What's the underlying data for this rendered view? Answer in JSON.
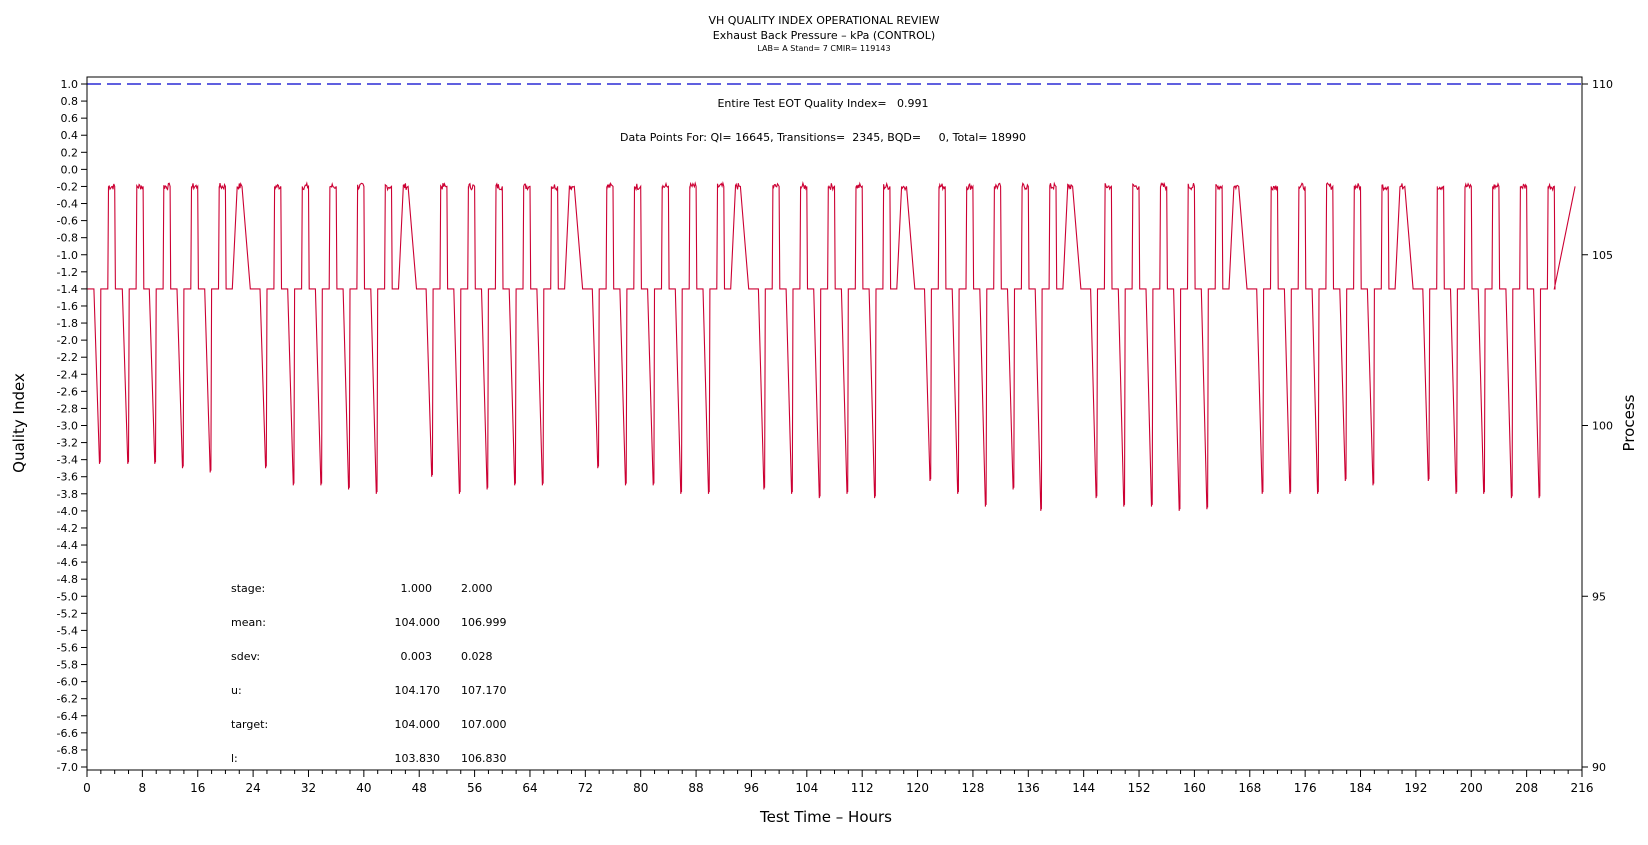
{
  "chart_data": {
    "type": "line",
    "title": "VH QUALITY INDEX OPERATIONAL REVIEW",
    "subtitle": "Exhaust Back Pressure – kPa (CONTROL)",
    "info_line": "LAB= A Stand= 7 CMIR= 119143",
    "xlabel": "Test Time – Hours",
    "ylabel_left": "Quality Index",
    "ylabel_right": "Process",
    "xlim": [
      0,
      216
    ],
    "xticks": [
      "0",
      "8",
      "16",
      "24",
      "32",
      "40",
      "48",
      "56",
      "64",
      "72",
      "80",
      "88",
      "96",
      "104",
      "112",
      "120",
      "128",
      "136",
      "144",
      "152",
      "160",
      "168",
      "176",
      "184",
      "192",
      "200",
      "208",
      "216"
    ],
    "ylim_left": [
      -7.0,
      1.0
    ],
    "yticks_left": [
      "1.0",
      "0.8",
      "0.6",
      "0.4",
      "0.2",
      "0.0",
      "-0.2",
      "-0.4",
      "-0.6",
      "-0.8",
      "-1.0",
      "-1.2",
      "-1.4",
      "-1.6",
      "-1.8",
      "-2.0",
      "-2.2",
      "-2.4",
      "-2.6",
      "-2.8",
      "-3.0",
      "-3.2",
      "-3.4",
      "-3.6",
      "-3.8",
      "-4.0",
      "-4.2",
      "-4.4",
      "-4.6",
      "-4.8",
      "-5.0",
      "-5.2",
      "-5.4",
      "-5.6",
      "-5.8",
      "-6.0",
      "-6.2",
      "-6.4",
      "-6.6",
      "-6.8",
      "-7.0"
    ],
    "ylim_right": [
      90,
      110
    ],
    "yticks_right": [
      "110",
      "105",
      "100",
      "95",
      "90"
    ],
    "grid": false,
    "annotations": {
      "quality_index_text": "Entire Test EOT Quality Index=   0.991",
      "data_points_text": "Data Points For: QI= 16645, Transitions=  2345, BQD=     0, Total= 18990"
    },
    "stats_table": {
      "rows": [
        {
          "label": "stage:",
          "v1": "1.000",
          "v2": "2.000"
        },
        {
          "label": "mean:",
          "v1": "104.000",
          "v2": "106.999"
        },
        {
          "label": "sdev:",
          "v1": "0.003",
          "v2": "0.028"
        },
        {
          "label": "u:",
          "v1": "104.170",
          "v2": "107.170"
        },
        {
          "label": "target:",
          "v1": "104.000",
          "v2": "107.000"
        },
        {
          "label": "l:",
          "v1": "103.830",
          "v2": "106.830"
        }
      ]
    },
    "series": [
      {
        "color": "#0000cc",
        "dashed": true,
        "axis": "left",
        "x": [
          0,
          216
        ],
        "y": [
          1.0,
          1.0
        ]
      },
      {
        "color": "#cc0033",
        "axis": "left",
        "baseline": -1.4,
        "peak": -0.2,
        "cycles": [
          {
            "start": 1.0,
            "min": -3.45
          },
          {
            "start": 5.1,
            "min": -3.45
          },
          {
            "start": 9.0,
            "min": -3.45
          },
          {
            "start": 13.0,
            "min": -3.5
          },
          {
            "start": 17.0,
            "min": -3.55
          },
          {
            "start": 21.0,
            "min": -1.4
          },
          {
            "start": 25.0,
            "min": -3.5
          },
          {
            "start": 29.0,
            "min": -3.7
          },
          {
            "start": 33.0,
            "min": -3.7
          },
          {
            "start": 37.0,
            "min": -3.75
          },
          {
            "start": 41.0,
            "min": -3.8
          },
          {
            "start": 45.0,
            "min": -1.4
          },
          {
            "start": 49.0,
            "min": -3.6
          },
          {
            "start": 53.0,
            "min": -3.8
          },
          {
            "start": 57.0,
            "min": -3.75
          },
          {
            "start": 61.0,
            "min": -3.7
          },
          {
            "start": 65.0,
            "min": -3.7
          },
          {
            "start": 69.0,
            "min": -1.4
          },
          {
            "start": 73.0,
            "min": -3.5
          },
          {
            "start": 77.0,
            "min": -3.7
          },
          {
            "start": 81.0,
            "min": -3.7
          },
          {
            "start": 85.0,
            "min": -3.8
          },
          {
            "start": 89.0,
            "min": -3.8
          },
          {
            "start": 93.0,
            "min": -1.4
          },
          {
            "start": 97.0,
            "min": -3.75
          },
          {
            "start": 101.0,
            "min": -3.8
          },
          {
            "start": 105.0,
            "min": -3.85
          },
          {
            "start": 109.0,
            "min": -3.8
          },
          {
            "start": 113.0,
            "min": -3.85
          },
          {
            "start": 117.0,
            "min": -1.4
          },
          {
            "start": 121.0,
            "min": -3.65
          },
          {
            "start": 125.0,
            "min": -3.8
          },
          {
            "start": 129.0,
            "min": -3.95
          },
          {
            "start": 133.0,
            "min": -3.75
          },
          {
            "start": 137.0,
            "min": -4.0
          },
          {
            "start": 141.0,
            "min": -1.4
          },
          {
            "start": 145.0,
            "min": -3.85
          },
          {
            "start": 149.0,
            "min": -3.95
          },
          {
            "start": 153.0,
            "min": -3.95
          },
          {
            "start": 157.0,
            "min": -4.0
          },
          {
            "start": 161.0,
            "min": -3.98
          },
          {
            "start": 165.0,
            "min": -1.4
          },
          {
            "start": 169.0,
            "min": -3.8
          },
          {
            "start": 173.0,
            "min": -3.8
          },
          {
            "start": 177.0,
            "min": -3.8
          },
          {
            "start": 181.0,
            "min": -3.65
          },
          {
            "start": 185.0,
            "min": -3.7
          },
          {
            "start": 189.0,
            "min": -1.4
          },
          {
            "start": 193.0,
            "min": -3.65
          },
          {
            "start": 197.0,
            "min": -3.8
          },
          {
            "start": 201.0,
            "min": -3.8
          },
          {
            "start": 205.0,
            "min": -3.85
          },
          {
            "start": 209.0,
            "min": -3.85
          }
        ],
        "end": [
          {
            "x": 212.0,
            "y": -1.4
          },
          {
            "x": 215.0,
            "y": -0.2
          }
        ]
      }
    ]
  }
}
